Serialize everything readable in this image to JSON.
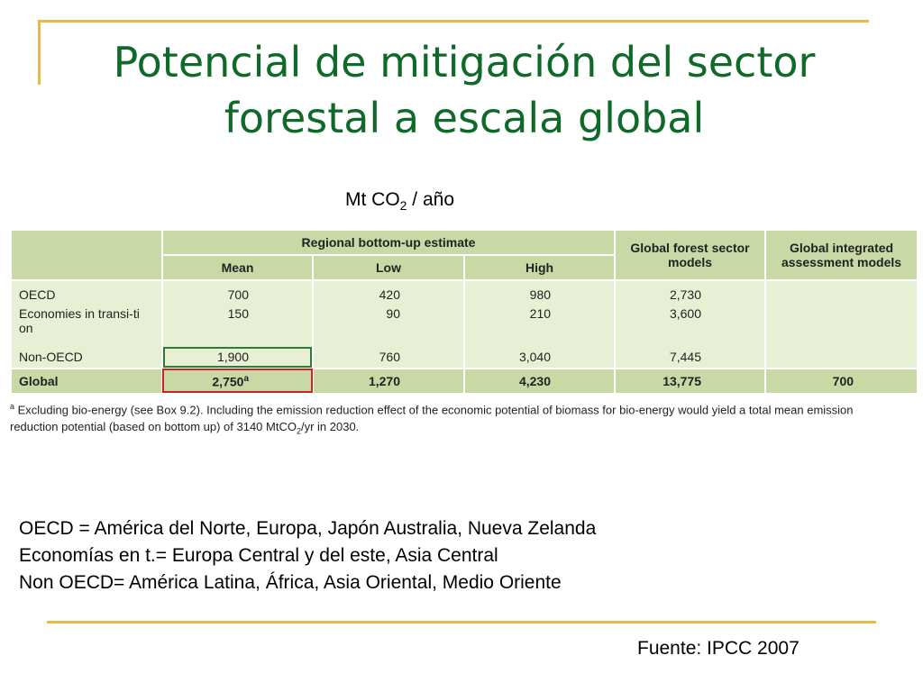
{
  "title": "Potencial de mitigación del sector forestal a escala global",
  "units": {
    "prefix": "Mt CO",
    "sub": "2",
    "suffix": " / año"
  },
  "table": {
    "group_header": "Regional bottom-up estimate",
    "col_mean": "Mean",
    "col_low": "Low",
    "col_high": "High",
    "col_forest": "Global forest sector models",
    "col_integrated": "Global integrated assessment models",
    "rows": [
      {
        "label": "OECD",
        "mean": "700",
        "low": "420",
        "high": "980",
        "forest": "2,730",
        "integrated": ""
      },
      {
        "label": "Economies in transi-tion",
        "mean": "150",
        "low": "90",
        "high": "210",
        "forest": "3,600",
        "integrated": ""
      },
      {
        "label": "Non-OECD",
        "mean": "1,900",
        "low": "760",
        "high": "3,040",
        "forest": "7,445",
        "integrated": ""
      },
      {
        "label": "Global",
        "mean": "2,750",
        "mean_sup": "a",
        "low": "1,270",
        "high": "4,230",
        "forest": "13,775",
        "integrated": "700"
      }
    ],
    "footnote_marker": "a",
    "footnote_line1": " Excluding bio-energy (see Box 9.2). Including the emission reduction effect of the economic potential of biomass for bio-energy would yield a total mean emission",
    "footnote_line2_a": "reduction potential (based on bottom up) of 3140 MtCO",
    "footnote_line2_sub": "2",
    "footnote_line2_b": "/yr in 2030."
  },
  "notes": [
    "OECD = América del Norte, Europa, Japón Australia, Nueva Zelanda",
    "Economías en t.= Europa Central y del este, Asia Central",
    "Non OECD= América Latina, África, Asia Oriental, Medio Oriente"
  ],
  "source": "Fuente: IPCC 2007",
  "colors": {
    "title": "#0f6a2a",
    "accent_line": "#e8b84a",
    "table_header": "#c9d9a6",
    "table_body": "#e7efd4",
    "highlight_green": "#2e7a36",
    "highlight_red": "#cc2222"
  }
}
